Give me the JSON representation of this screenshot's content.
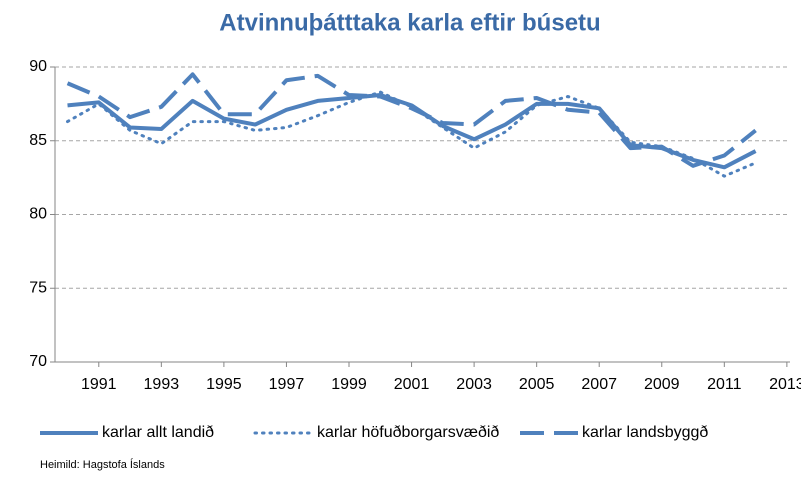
{
  "chart_data": {
    "type": "line",
    "title": "Atvinnuþátttaka karla eftir búsetu",
    "source": "Heimild: Hagstofa Íslands",
    "x": [
      1990,
      1991,
      1992,
      1993,
      1994,
      1995,
      1996,
      1997,
      1998,
      1999,
      2000,
      2001,
      2002,
      2003,
      2004,
      2005,
      2006,
      2007,
      2008,
      2009,
      2010,
      2011,
      2012
    ],
    "series": [
      {
        "name": "karlar allt landið",
        "color": "#4f81bd",
        "style": "solid",
        "values": [
          87.4,
          87.6,
          85.9,
          85.8,
          87.7,
          86.5,
          86.1,
          87.1,
          87.7,
          87.9,
          88.1,
          87.4,
          86.0,
          85.1,
          86.1,
          87.5,
          87.5,
          87.2,
          84.7,
          84.5,
          83.7,
          83.2,
          84.3
        ]
      },
      {
        "name": "karlar höfuðborgarsvæðið",
        "color": "#4f81bd",
        "style": "dotted",
        "values": [
          86.3,
          87.5,
          85.7,
          84.8,
          86.3,
          86.3,
          85.7,
          85.9,
          86.7,
          87.6,
          88.3,
          87.3,
          85.9,
          84.5,
          85.6,
          87.4,
          88.0,
          87.2,
          84.9,
          84.6,
          83.8,
          82.6,
          83.5
        ]
      },
      {
        "name": "karlar landsbyggð",
        "color": "#4f81bd",
        "style": "dashed",
        "values": [
          88.9,
          88.0,
          86.6,
          87.3,
          89.5,
          86.8,
          86.8,
          89.1,
          89.4,
          88.1,
          88.0,
          87.2,
          86.2,
          86.1,
          87.7,
          87.9,
          87.1,
          86.9,
          84.5,
          84.6,
          83.3,
          84.0,
          85.7
        ]
      }
    ],
    "xlim": [
      1989.6,
      2013.1
    ],
    "xticks": [
      1991,
      1993,
      1995,
      1997,
      1999,
      2001,
      2003,
      2005,
      2007,
      2009,
      2011,
      2013
    ],
    "ylim": [
      70,
      90
    ],
    "yticks": [
      70,
      75,
      80,
      85,
      90
    ],
    "grid": true,
    "legend": "bottom"
  }
}
